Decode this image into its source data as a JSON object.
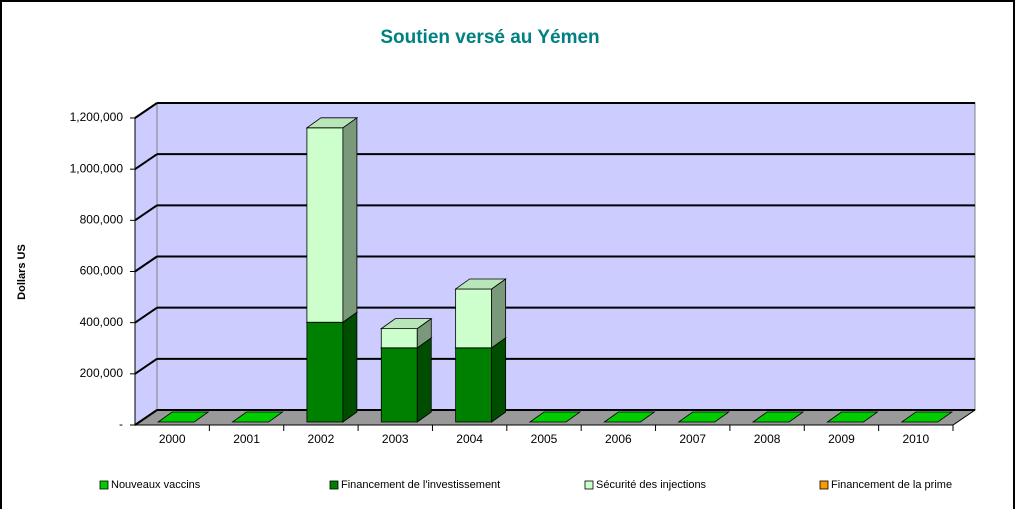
{
  "chart_data": {
    "type": "bar3d_stacked",
    "title": "Soutien versé au Yémen",
    "y_label": "Dollars US",
    "categories": [
      "2000",
      "2001",
      "2002",
      "2003",
      "2004",
      "2005",
      "2006",
      "2007",
      "2008",
      "2009",
      "2010"
    ],
    "series": [
      {
        "name": "Nouveaux vaccins",
        "color": "#00cc00",
        "values": [
          0,
          0,
          0,
          0,
          0,
          0,
          0,
          0,
          0,
          0,
          0
        ]
      },
      {
        "name": "Financement de l'investissement",
        "color": "#008000",
        "values": [
          0,
          0,
          390000,
          290000,
          290000,
          0,
          0,
          0,
          0,
          0,
          0
        ]
      },
      {
        "name": "Sécurité des injections",
        "color": "#ccffcc",
        "values": [
          0,
          0,
          760000,
          75000,
          230000,
          0,
          0,
          0,
          0,
          0,
          0
        ]
      },
      {
        "name": "Financement de la prime",
        "color": "#ff9900",
        "values": [
          0,
          0,
          0,
          0,
          0,
          0,
          0,
          0,
          0,
          0,
          0
        ]
      }
    ],
    "ylim": [
      0,
      1200000
    ],
    "yticks": [
      {
        "value": 0,
        "label": "-"
      },
      {
        "value": 200000,
        "label": "200,000"
      },
      {
        "value": 400000,
        "label": "400,000"
      },
      {
        "value": 600000,
        "label": "600,000"
      },
      {
        "value": 800000,
        "label": "800,000"
      },
      {
        "value": 1000000,
        "label": "1,000,000"
      },
      {
        "value": 1200000,
        "label": "1,200,000"
      }
    ],
    "grid": true,
    "legend": "bottom"
  }
}
